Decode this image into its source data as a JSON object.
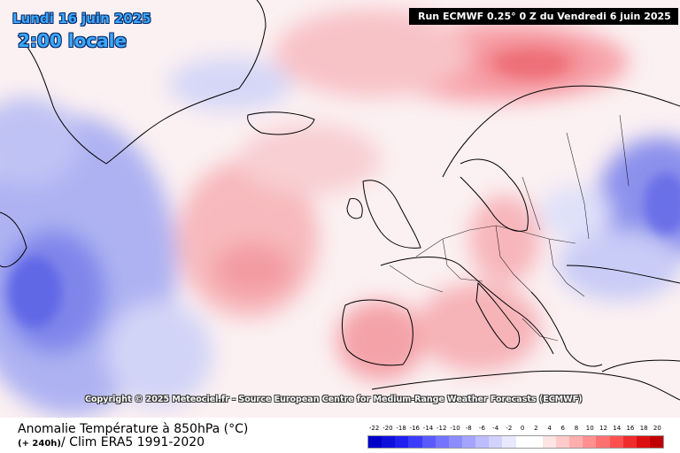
{
  "header": {
    "date": "Lundi 16 juin 2025",
    "local_time": "2:00 locale",
    "run_info": "Run ECMWF 0.25° 0 Z du Vendredi 6 juin 2025"
  },
  "map": {
    "copyright": "Copyright © 2025 Meteociel.fr - Source European Centre for Medium-Range Weather Forecasts (ECMWF)"
  },
  "footer": {
    "title": "Anomalie Température à 850hPa (°C)",
    "lead": "(+ 240h)",
    "clim": "/ Clim ERA5 1991-2020"
  },
  "legend": {
    "labels": [
      "-22",
      "-20",
      "-18",
      "-16",
      "-14",
      "-12",
      "-10",
      "-8",
      "-6",
      "-4",
      "-2",
      "0",
      "2",
      "4",
      "6",
      "8",
      "10",
      "12",
      "14",
      "16",
      "18",
      "20"
    ],
    "colors": [
      "#0000c8",
      "#1010dc",
      "#2020f0",
      "#3c3cff",
      "#5a5aff",
      "#7474ff",
      "#8c8cff",
      "#a4a4ff",
      "#bcbcff",
      "#d2d2ff",
      "#e8e8ff",
      "#ffffff",
      "#ffffff",
      "#ffe4e4",
      "#ffcaca",
      "#ffaeae",
      "#ff9090",
      "#ff7070",
      "#ff5050",
      "#f02c2c",
      "#dc1010",
      "#c00000"
    ]
  }
}
